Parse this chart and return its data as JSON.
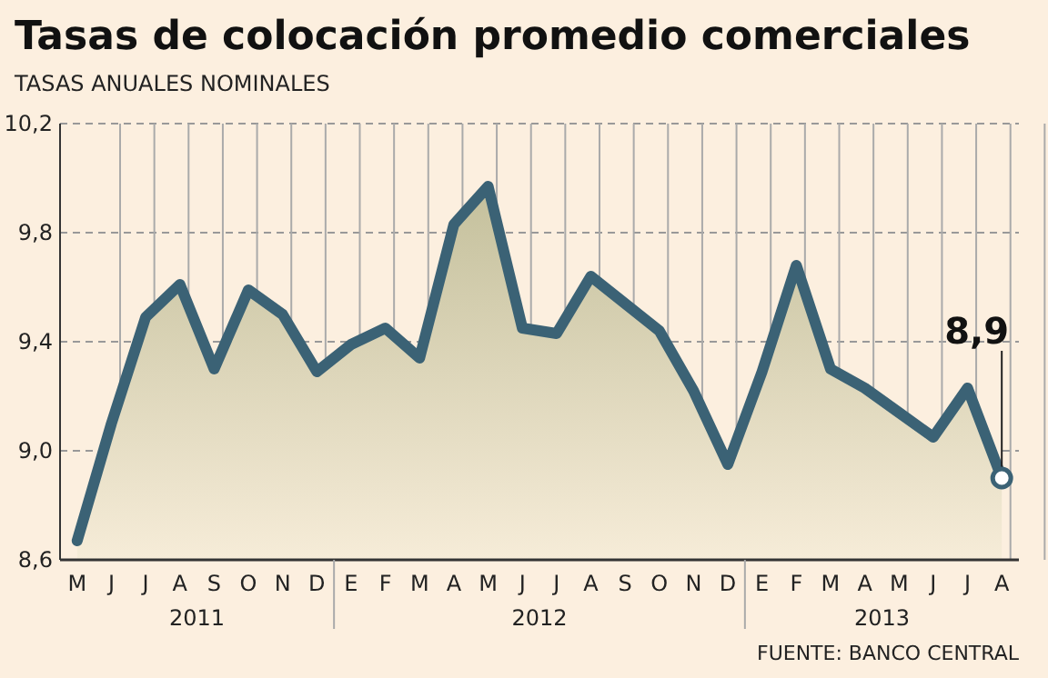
{
  "chart_data": {
    "type": "area",
    "title": "Tasas de colocación promedio comerciales",
    "subtitle": "TASAS ANUALES NOMINALES",
    "categories": [
      "M",
      "J",
      "J",
      "A",
      "S",
      "O",
      "N",
      "D",
      "E",
      "F",
      "M",
      "A",
      "M",
      "J",
      "J",
      "A",
      "S",
      "O",
      "N",
      "D",
      "E",
      "F",
      "M",
      "A",
      "M",
      "J",
      "J",
      "A"
    ],
    "series": [
      {
        "color": "#3b6275",
        "values": [
          8.67,
          9.1,
          9.49,
          9.61,
          9.3,
          9.59,
          9.5,
          9.29,
          9.39,
          9.45,
          9.34,
          9.83,
          9.97,
          9.45,
          9.43,
          9.64,
          9.54,
          9.44,
          9.22,
          8.95,
          9.29,
          9.68,
          9.3,
          9.23,
          9.14,
          9.05,
          9.23,
          8.9
        ]
      }
    ],
    "ylim": [
      8.6,
      10.2
    ],
    "yticks": [
      {
        "value": 8.6,
        "label": "8,6"
      },
      {
        "value": 9.0,
        "label": "9,0"
      },
      {
        "value": 9.4,
        "label": "9,4"
      },
      {
        "value": 9.8,
        "label": "9,8"
      },
      {
        "value": 10.2,
        "label": "10,2"
      }
    ],
    "grid": true,
    "marker": "none",
    "line_style": "solid",
    "value_labels": [
      null,
      null,
      null,
      null,
      null,
      null,
      null,
      null,
      null,
      null,
      null,
      null,
      null,
      null,
      null,
      null,
      null,
      null,
      null,
      null,
      null,
      null,
      null,
      null,
      null,
      null,
      null,
      "8,9"
    ],
    "annotations": [
      "2011",
      "2012",
      "2013",
      "FUENTE: BANCO CENTRAL"
    ]
  }
}
